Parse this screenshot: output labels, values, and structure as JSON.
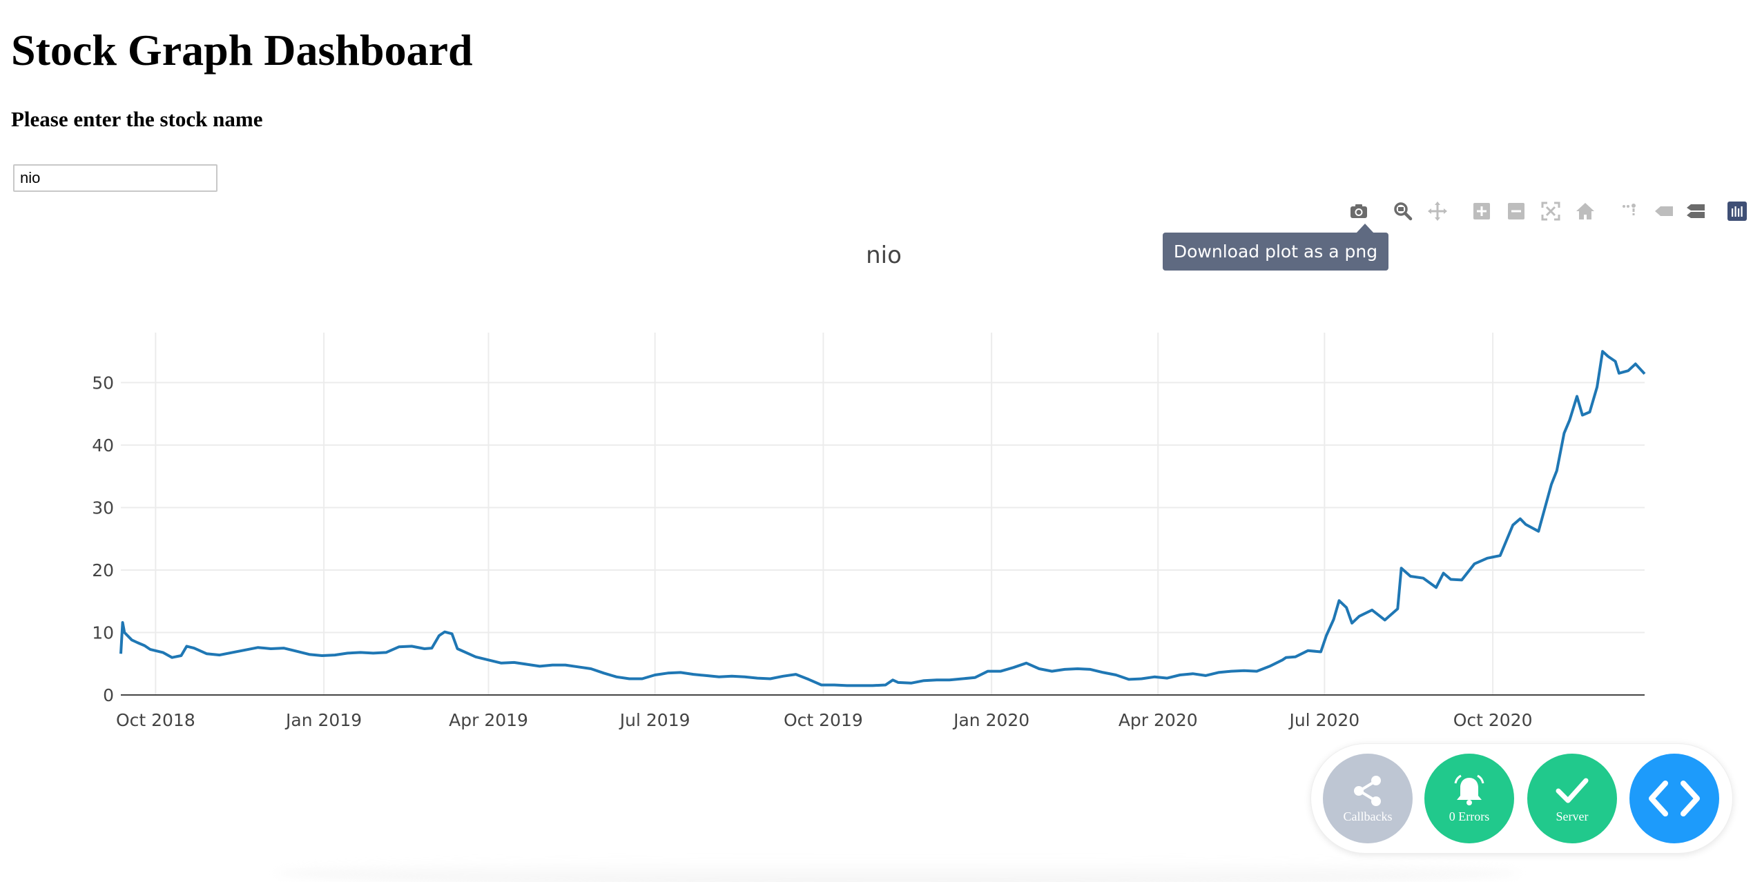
{
  "page": {
    "title": "Stock Graph Dashboard",
    "prompt": "Please enter the stock name"
  },
  "search": {
    "value": "nio"
  },
  "modebar": {
    "tooltip": "Download plot as a png",
    "buttons": [
      "camera-icon",
      "zoom-icon",
      "pan-icon",
      "zoom-in-icon",
      "zoom-out-icon",
      "autoscale-icon",
      "reset-axes-icon",
      "spike-lines-icon",
      "hover-closest-icon",
      "hover-compare-icon",
      "plotly-logo-icon"
    ]
  },
  "chart_data": {
    "type": "line",
    "title": "nio",
    "xlabel": "",
    "ylabel": "",
    "x_range": [
      "2018-09-12",
      "2020-12-23"
    ],
    "ylim": [
      0,
      58
    ],
    "grid": true,
    "line_color": "#1f77b4",
    "x_ticks": [
      {
        "date": "2018-10-01",
        "label": "Oct 2018"
      },
      {
        "date": "2019-01-01",
        "label": "Jan 2019"
      },
      {
        "date": "2019-04-01",
        "label": "Apr 2019"
      },
      {
        "date": "2019-07-01",
        "label": "Jul 2019"
      },
      {
        "date": "2019-10-01",
        "label": "Oct 2019"
      },
      {
        "date": "2020-01-01",
        "label": "Jan 2020"
      },
      {
        "date": "2020-04-01",
        "label": "Apr 2020"
      },
      {
        "date": "2020-07-01",
        "label": "Jul 2020"
      },
      {
        "date": "2020-10-01",
        "label": "Oct 2020"
      }
    ],
    "y_ticks": [
      0,
      10,
      20,
      30,
      40,
      50
    ],
    "x": [
      "2018-09-12",
      "2018-09-13",
      "2018-09-14",
      "2018-09-18",
      "2018-09-21",
      "2018-09-25",
      "2018-09-28",
      "2018-10-05",
      "2018-10-10",
      "2018-10-15",
      "2018-10-18",
      "2018-10-22",
      "2018-10-29",
      "2018-11-05",
      "2018-11-12",
      "2018-11-19",
      "2018-11-26",
      "2018-12-03",
      "2018-12-10",
      "2018-12-17",
      "2018-12-24",
      "2018-12-31",
      "2019-01-07",
      "2019-01-14",
      "2019-01-21",
      "2019-01-28",
      "2019-02-04",
      "2019-02-11",
      "2019-02-18",
      "2019-02-25",
      "2019-03-01",
      "2019-03-05",
      "2019-03-08",
      "2019-03-12",
      "2019-03-15",
      "2019-03-25",
      "2019-04-01",
      "2019-04-08",
      "2019-04-15",
      "2019-04-22",
      "2019-04-29",
      "2019-05-06",
      "2019-05-13",
      "2019-05-20",
      "2019-05-27",
      "2019-06-03",
      "2019-06-10",
      "2019-06-17",
      "2019-06-24",
      "2019-07-01",
      "2019-07-08",
      "2019-07-15",
      "2019-07-22",
      "2019-07-29",
      "2019-08-05",
      "2019-08-12",
      "2019-08-19",
      "2019-08-26",
      "2019-09-02",
      "2019-09-09",
      "2019-09-16",
      "2019-09-23",
      "2019-09-30",
      "2019-10-07",
      "2019-10-14",
      "2019-10-21",
      "2019-10-28",
      "2019-11-04",
      "2019-11-08",
      "2019-11-11",
      "2019-11-18",
      "2019-11-25",
      "2019-12-02",
      "2019-12-09",
      "2019-12-16",
      "2019-12-23",
      "2019-12-30",
      "2020-01-06",
      "2020-01-13",
      "2020-01-20",
      "2020-01-27",
      "2020-02-03",
      "2020-02-10",
      "2020-02-17",
      "2020-02-24",
      "2020-03-02",
      "2020-03-09",
      "2020-03-16",
      "2020-03-23",
      "2020-03-30",
      "2020-04-06",
      "2020-04-13",
      "2020-04-20",
      "2020-04-27",
      "2020-05-04",
      "2020-05-11",
      "2020-05-18",
      "2020-05-25",
      "2020-06-01",
      "2020-06-08",
      "2020-06-10",
      "2020-06-15",
      "2020-06-22",
      "2020-06-29",
      "2020-07-02",
      "2020-07-06",
      "2020-07-09",
      "2020-07-13",
      "2020-07-16",
      "2020-07-20",
      "2020-07-27",
      "2020-08-03",
      "2020-08-10",
      "2020-08-12",
      "2020-08-17",
      "2020-08-24",
      "2020-08-31",
      "2020-09-04",
      "2020-09-08",
      "2020-09-14",
      "2020-09-21",
      "2020-09-28",
      "2020-10-05",
      "2020-10-12",
      "2020-10-16",
      "2020-10-19",
      "2020-10-26",
      "2020-11-02",
      "2020-11-05",
      "2020-11-09",
      "2020-11-12",
      "2020-11-16",
      "2020-11-19",
      "2020-11-23",
      "2020-11-27",
      "2020-11-30",
      "2020-12-03",
      "2020-12-07",
      "2020-12-09",
      "2020-12-14",
      "2020-12-18",
      "2020-12-23"
    ],
    "y": [
      6.6,
      11.6,
      10.0,
      8.8,
      8.4,
      7.9,
      7.3,
      6.8,
      6.0,
      6.3,
      7.8,
      7.5,
      6.6,
      6.4,
      6.8,
      7.2,
      7.6,
      7.4,
      7.5,
      7.0,
      6.5,
      6.3,
      6.4,
      6.7,
      6.8,
      6.7,
      6.8,
      7.7,
      7.8,
      7.4,
      7.5,
      9.5,
      10.1,
      9.8,
      7.4,
      6.1,
      5.6,
      5.1,
      5.2,
      4.9,
      4.6,
      4.8,
      4.8,
      4.5,
      4.2,
      3.5,
      2.9,
      2.6,
      2.6,
      3.2,
      3.5,
      3.6,
      3.3,
      3.1,
      2.9,
      3.0,
      2.9,
      2.7,
      2.6,
      3.0,
      3.3,
      2.5,
      1.6,
      1.6,
      1.5,
      1.5,
      1.5,
      1.6,
      2.4,
      2.0,
      1.9,
      2.3,
      2.4,
      2.4,
      2.6,
      2.8,
      3.8,
      3.8,
      4.4,
      5.1,
      4.2,
      3.8,
      4.1,
      4.2,
      4.1,
      3.6,
      3.2,
      2.5,
      2.6,
      2.9,
      2.7,
      3.2,
      3.4,
      3.1,
      3.6,
      3.8,
      3.9,
      3.8,
      4.6,
      5.6,
      6.0,
      6.1,
      7.1,
      6.9,
      9.5,
      12.1,
      15.1,
      14.0,
      11.5,
      12.6,
      13.6,
      12.0,
      13.8,
      20.3,
      19.0,
      18.7,
      17.2,
      19.5,
      18.5,
      18.4,
      21.0,
      21.9,
      22.3,
      27.2,
      28.2,
      27.3,
      26.2,
      33.7,
      35.9,
      41.9,
      44.0,
      47.8,
      44.8,
      45.3,
      49.3,
      55.0,
      54.2,
      53.4,
      51.5,
      51.9,
      53.0,
      51.4
    ]
  },
  "devtools": {
    "callbacks": "Callbacks",
    "errors": "0 Errors",
    "server": "Server"
  }
}
